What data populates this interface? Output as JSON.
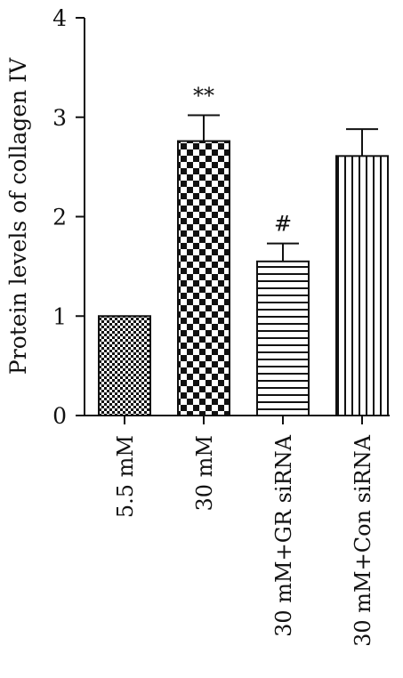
{
  "chart_data": {
    "type": "bar",
    "title": "",
    "xlabel": "",
    "ylabel": "Protein levels of collagen IV",
    "ylim": [
      0,
      4
    ],
    "yticks": [
      "0",
      "1",
      "2",
      "3",
      "4"
    ],
    "grid": false,
    "categories": [
      "5.5 mM",
      "30 mM",
      "30 mM+GR siRNA",
      "30 mM+Con siRNA"
    ],
    "values": [
      1.0,
      2.76,
      1.55,
      2.61
    ],
    "errors": [
      0,
      0.26,
      0.18,
      0.27
    ],
    "patterns": [
      "fine-checker",
      "coarse-checker",
      "horizontal-stripes",
      "vertical-stripes"
    ],
    "annotations": [
      "",
      "**",
      "#",
      ""
    ],
    "colors": {
      "ink": "#111111",
      "background": "#ffffff"
    }
  }
}
